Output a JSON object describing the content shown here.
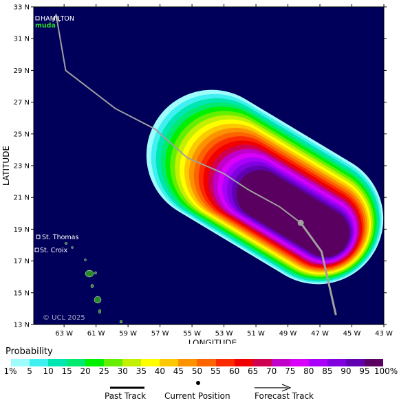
{
  "map": {
    "axis_title_x": "LONGITUDE",
    "axis_title_y": "LATITUDE",
    "lat_ticks": [
      "33 N",
      "31 N",
      "29 N",
      "27 N",
      "25 N",
      "23 N",
      "21 N",
      "19 N",
      "17 N",
      "15 N",
      "13 N"
    ],
    "lon_ticks": [
      "63 W",
      "61 W",
      "59 W",
      "57 W",
      "55 W",
      "53 W",
      "51 W",
      "49 W",
      "47 W",
      "45 W",
      "43 W"
    ],
    "places": {
      "hamilton": "HAMILTON",
      "bermuda": "muda",
      "st_thomas": "St. Thomas",
      "st_croix": "St. Croix"
    },
    "credit": "© UCL 2025",
    "ocean_color": "#00005a",
    "land_color": "#2a8a2a",
    "track_color": "#a0a0a0",
    "past_track": [
      {
        "lon": -48.2,
        "lat": 19.4
      }
    ],
    "current_position": {
      "lon": -48.2,
      "lat": 19.4
    },
    "forecast_track": [
      {
        "lon": -48.2,
        "lat": 19.4
      },
      {
        "lon": -46.9,
        "lat": 17.6
      },
      {
        "lon": -46.0,
        "lat": 13.6
      }
    ],
    "historical_path": [
      {
        "lon": -48.2,
        "lat": 19.4
      },
      {
        "lon": -49.5,
        "lat": 20.4
      },
      {
        "lon": -51.5,
        "lat": 21.5
      },
      {
        "lon": -53.0,
        "lat": 22.5
      },
      {
        "lon": -55.3,
        "lat": 23.5
      },
      {
        "lon": -57.3,
        "lat": 25.3
      },
      {
        "lon": -59.8,
        "lat": 26.6
      },
      {
        "lon": -62.9,
        "lat": 29.0
      },
      {
        "lon": -63.5,
        "lat": 32.5
      }
    ]
  },
  "legend": {
    "title": "Probability",
    "levels": [
      "1%",
      "5",
      "10",
      "15",
      "20",
      "25",
      "30",
      "35",
      "40",
      "45",
      "50",
      "55",
      "60",
      "65",
      "70",
      "75",
      "80",
      "85",
      "90",
      "95",
      "100%"
    ],
    "colors": [
      "#9ffcfc",
      "#40f0f0",
      "#00e6b0",
      "#00ea70",
      "#00f000",
      "#66ee00",
      "#c2f000",
      "#ffff00",
      "#fcc800",
      "#fc9200",
      "#fc6400",
      "#fc2a00",
      "#f00000",
      "#d00050",
      "#c000c8",
      "#d800f8",
      "#a800f8",
      "#8000e0",
      "#6000b0",
      "#5a0060"
    ],
    "past_track": "Past Track",
    "current_position": "Current Position",
    "forecast_track": "Forecast Track"
  }
}
